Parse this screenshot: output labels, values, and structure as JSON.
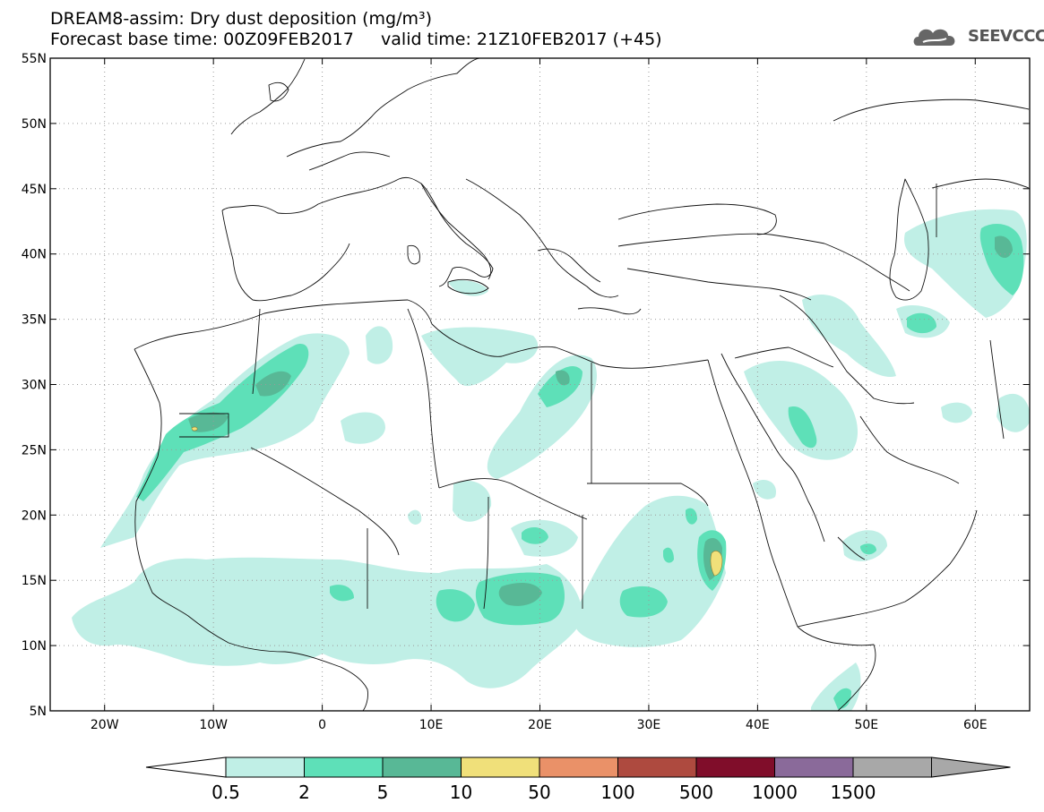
{
  "title": {
    "line1": "DREAM8-assim: Dry dust deposition (mg/m³)",
    "line2": "Forecast base time: 00Z09FEB2017     valid time: 21Z10FEB2017 (+45)"
  },
  "logo": {
    "text": "SEEVCCC",
    "icon": "cloud-icon"
  },
  "map": {
    "lat_range": [
      5,
      55
    ],
    "lon_range": [
      -25,
      65
    ],
    "lat_ticks": [
      "55N",
      "50N",
      "45N",
      "40N",
      "35N",
      "30N",
      "25N",
      "20N",
      "15N",
      "10N",
      "5N"
    ],
    "lon_ticks": [
      "20W",
      "10W",
      "0",
      "10E",
      "20E",
      "30E",
      "40E",
      "50E",
      "60E"
    ],
    "grid": "dotted"
  },
  "legend": {
    "labels": [
      "0.5",
      "2",
      "5",
      "10",
      "50",
      "100",
      "500",
      "1000",
      "1500"
    ],
    "colors": [
      "#c0efe6",
      "#5ee0b8",
      "#58b896",
      "#f0e07a",
      "#ea9168",
      "#ae4a3f",
      "#800d2a",
      "#8a6a9a",
      "#a8a8a8"
    ]
  }
}
